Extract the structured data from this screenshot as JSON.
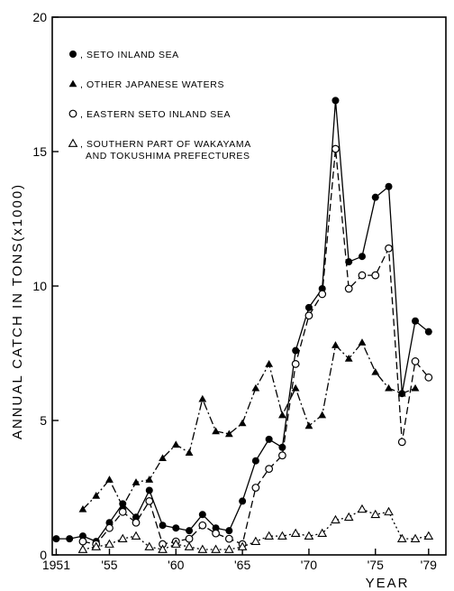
{
  "chart_data": {
    "type": "line",
    "title": "",
    "xlabel": "YEAR",
    "ylabel": "ANNUAL CATCH IN TONS(x1000)",
    "xlim": [
      1950.7,
      1980.3
    ],
    "ylim": [
      0,
      20
    ],
    "x_ticks": [
      1951,
      1955,
      1960,
      1965,
      1970,
      1975,
      1979
    ],
    "x_tick_labels": [
      "1951",
      "'55",
      "'60",
      "'65",
      "'70",
      "'75",
      "'79"
    ],
    "y_ticks": [
      0,
      5,
      10,
      15,
      20
    ],
    "y_tick_labels": [
      "0",
      "5",
      "10",
      "15",
      "20"
    ],
    "grid": false,
    "legend_position": "top-left",
    "series": [
      {
        "name": ", SETO INLAND SEA",
        "marker": "filled-circle",
        "line": "solid",
        "points": [
          [
            1951,
            0.6
          ],
          [
            1952,
            0.6
          ],
          [
            1953,
            0.7
          ],
          [
            1954,
            0.5
          ],
          [
            1955,
            1.2
          ],
          [
            1956,
            1.9
          ],
          [
            1957,
            1.4
          ],
          [
            1958,
            2.4
          ],
          [
            1959,
            1.1
          ],
          [
            1960,
            1.0
          ],
          [
            1961,
            0.9
          ],
          [
            1962,
            1.5
          ],
          [
            1963,
            1.0
          ],
          [
            1964,
            0.9
          ],
          [
            1965,
            2.0
          ],
          [
            1966,
            3.5
          ],
          [
            1967,
            4.3
          ],
          [
            1968,
            4.0
          ],
          [
            1969,
            7.6
          ],
          [
            1970,
            9.2
          ],
          [
            1971,
            9.9
          ],
          [
            1972,
            16.9
          ],
          [
            1973,
            10.9
          ],
          [
            1974,
            11.1
          ],
          [
            1975,
            13.3
          ],
          [
            1976,
            13.7
          ],
          [
            1977,
            6.0
          ],
          [
            1978,
            8.7
          ],
          [
            1979,
            8.3
          ]
        ]
      },
      {
        "name": ", OTHER JAPANESE WATERS",
        "marker": "filled-triangle",
        "line": "dash-dot",
        "points": [
          [
            1953,
            1.7
          ],
          [
            1954,
            2.2
          ],
          [
            1955,
            2.8
          ],
          [
            1956,
            1.8
          ],
          [
            1957,
            2.7
          ],
          [
            1958,
            2.8
          ],
          [
            1959,
            3.6
          ],
          [
            1960,
            4.1
          ],
          [
            1961,
            3.8
          ],
          [
            1962,
            5.8
          ],
          [
            1963,
            4.6
          ],
          [
            1964,
            4.5
          ],
          [
            1965,
            4.9
          ],
          [
            1966,
            6.2
          ],
          [
            1967,
            7.1
          ],
          [
            1968,
            5.2
          ],
          [
            1969,
            6.2
          ],
          [
            1970,
            4.8
          ],
          [
            1971,
            5.2
          ],
          [
            1972,
            7.8
          ],
          [
            1973,
            7.3
          ],
          [
            1974,
            7.9
          ],
          [
            1975,
            6.8
          ],
          [
            1976,
            6.2
          ],
          [
            1977,
            6.0
          ],
          [
            1978,
            6.2
          ]
        ]
      },
      {
        "name": ", EASTERN SETO INLAND SEA",
        "marker": "open-circle",
        "line": "dashed",
        "points": [
          [
            1953,
            0.5
          ],
          [
            1954,
            0.4
          ],
          [
            1955,
            1.0
          ],
          [
            1956,
            1.6
          ],
          [
            1957,
            1.2
          ],
          [
            1958,
            2.0
          ],
          [
            1959,
            0.4
          ],
          [
            1960,
            0.5
          ],
          [
            1961,
            0.6
          ],
          [
            1962,
            1.1
          ],
          [
            1963,
            0.8
          ],
          [
            1964,
            0.6
          ],
          [
            1965,
            0.4
          ],
          [
            1966,
            2.5
          ],
          [
            1967,
            3.2
          ],
          [
            1968,
            3.7
          ],
          [
            1969,
            7.1
          ],
          [
            1970,
            8.9
          ],
          [
            1971,
            9.7
          ],
          [
            1972,
            15.1
          ],
          [
            1973,
            9.9
          ],
          [
            1974,
            10.4
          ],
          [
            1975,
            10.4
          ],
          [
            1976,
            11.4
          ],
          [
            1977,
            4.2
          ],
          [
            1978,
            7.2
          ],
          [
            1979,
            6.6
          ]
        ]
      },
      {
        "name": ", SOUTHERN PART OF WAKAYAMA AND TOKUSHIMA PREFECTURES",
        "name_lines": [
          ", SOUTHERN PART OF WAKAYAMA",
          "AND TOKUSHIMA PREFECTURES"
        ],
        "marker": "open-triangle",
        "line": "dotted",
        "points": [
          [
            1953,
            0.2
          ],
          [
            1954,
            0.3
          ],
          [
            1955,
            0.4
          ],
          [
            1956,
            0.6
          ],
          [
            1957,
            0.7
          ],
          [
            1958,
            0.3
          ],
          [
            1959,
            0.2
          ],
          [
            1960,
            0.4
          ],
          [
            1961,
            0.3
          ],
          [
            1962,
            0.2
          ],
          [
            1963,
            0.2
          ],
          [
            1964,
            0.2
          ],
          [
            1965,
            0.3
          ],
          [
            1966,
            0.5
          ],
          [
            1967,
            0.7
          ],
          [
            1968,
            0.7
          ],
          [
            1969,
            0.8
          ],
          [
            1970,
            0.7
          ],
          [
            1971,
            0.8
          ],
          [
            1972,
            1.3
          ],
          [
            1973,
            1.4
          ],
          [
            1974,
            1.7
          ],
          [
            1975,
            1.5
          ],
          [
            1976,
            1.6
          ],
          [
            1977,
            0.6
          ],
          [
            1978,
            0.6
          ],
          [
            1979,
            0.7
          ]
        ]
      }
    ]
  }
}
